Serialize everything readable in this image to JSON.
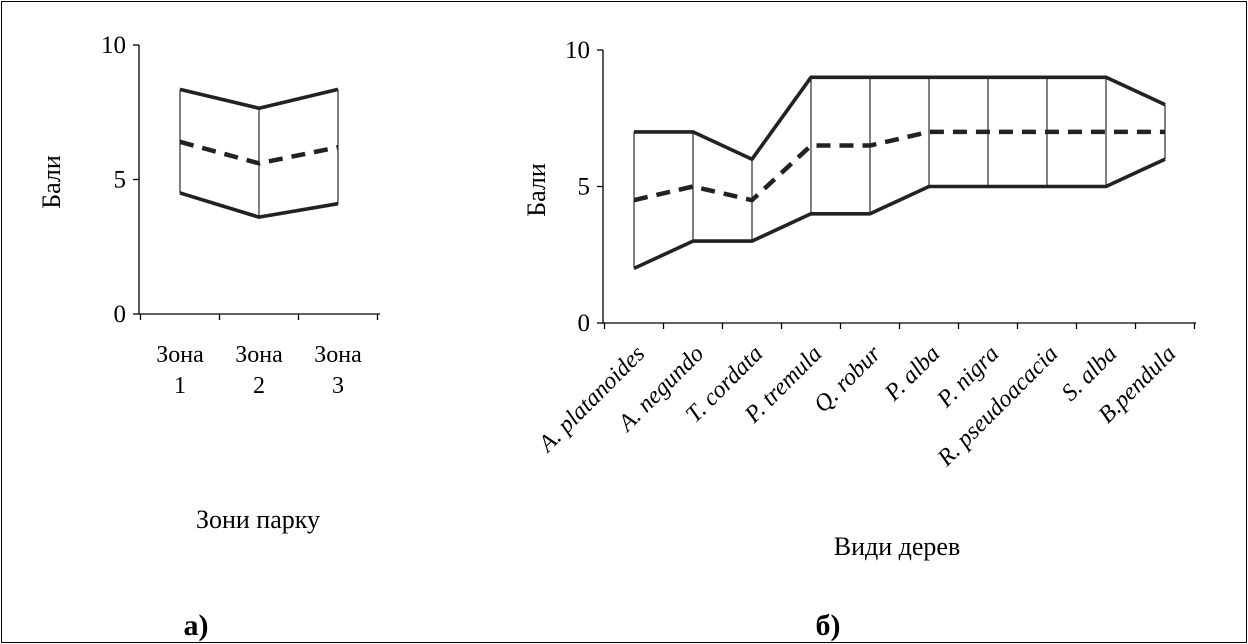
{
  "charts": {
    "left_label": "а)",
    "right_label": "б)"
  },
  "chart_data": [
    {
      "type": "line",
      "title": "",
      "xlabel": "Зони парку",
      "ylabel": "Бали",
      "ylim": [
        0,
        10
      ],
      "yticks": [
        0,
        5,
        10
      ],
      "categories": [
        [
          "Зона",
          "1"
        ],
        [
          "Зона",
          "2"
        ],
        [
          "Зона",
          "3"
        ]
      ],
      "series": [
        {
          "role": "max",
          "style": "solid",
          "values": [
            8.35,
            7.65,
            8.35
          ]
        },
        {
          "role": "mean",
          "style": "dashed",
          "values": [
            6.4,
            5.6,
            6.2
          ]
        },
        {
          "role": "min",
          "style": "solid",
          "values": [
            4.5,
            3.6,
            4.1
          ]
        }
      ],
      "vertical_connectors": true,
      "grid": false,
      "legend": "none"
    },
    {
      "type": "line",
      "title": "",
      "xlabel": "Види дерев",
      "ylabel": "Бали",
      "ylim": [
        0,
        10
      ],
      "yticks": [
        0,
        5,
        10
      ],
      "categories": [
        "A. platanoides",
        "A. negundo",
        "T. cordata",
        "P. tremula",
        "Q. robur",
        "P. alba",
        "P. nigra",
        "R. pseudoacacia",
        "S. alba",
        "B.pendula"
      ],
      "series": [
        {
          "role": "max",
          "style": "solid",
          "values": [
            7,
            7,
            6,
            9,
            9,
            9,
            9,
            9,
            9,
            8
          ]
        },
        {
          "role": "mean",
          "style": "dashed",
          "values": [
            4.5,
            5,
            4.5,
            6.5,
            6.5,
            7,
            7,
            7,
            7,
            7
          ]
        },
        {
          "role": "min",
          "style": "solid",
          "values": [
            2,
            3,
            3,
            4,
            4,
            5,
            5,
            5,
            5,
            6
          ]
        }
      ],
      "vertical_connectors": true,
      "grid": false,
      "legend": "none"
    }
  ]
}
